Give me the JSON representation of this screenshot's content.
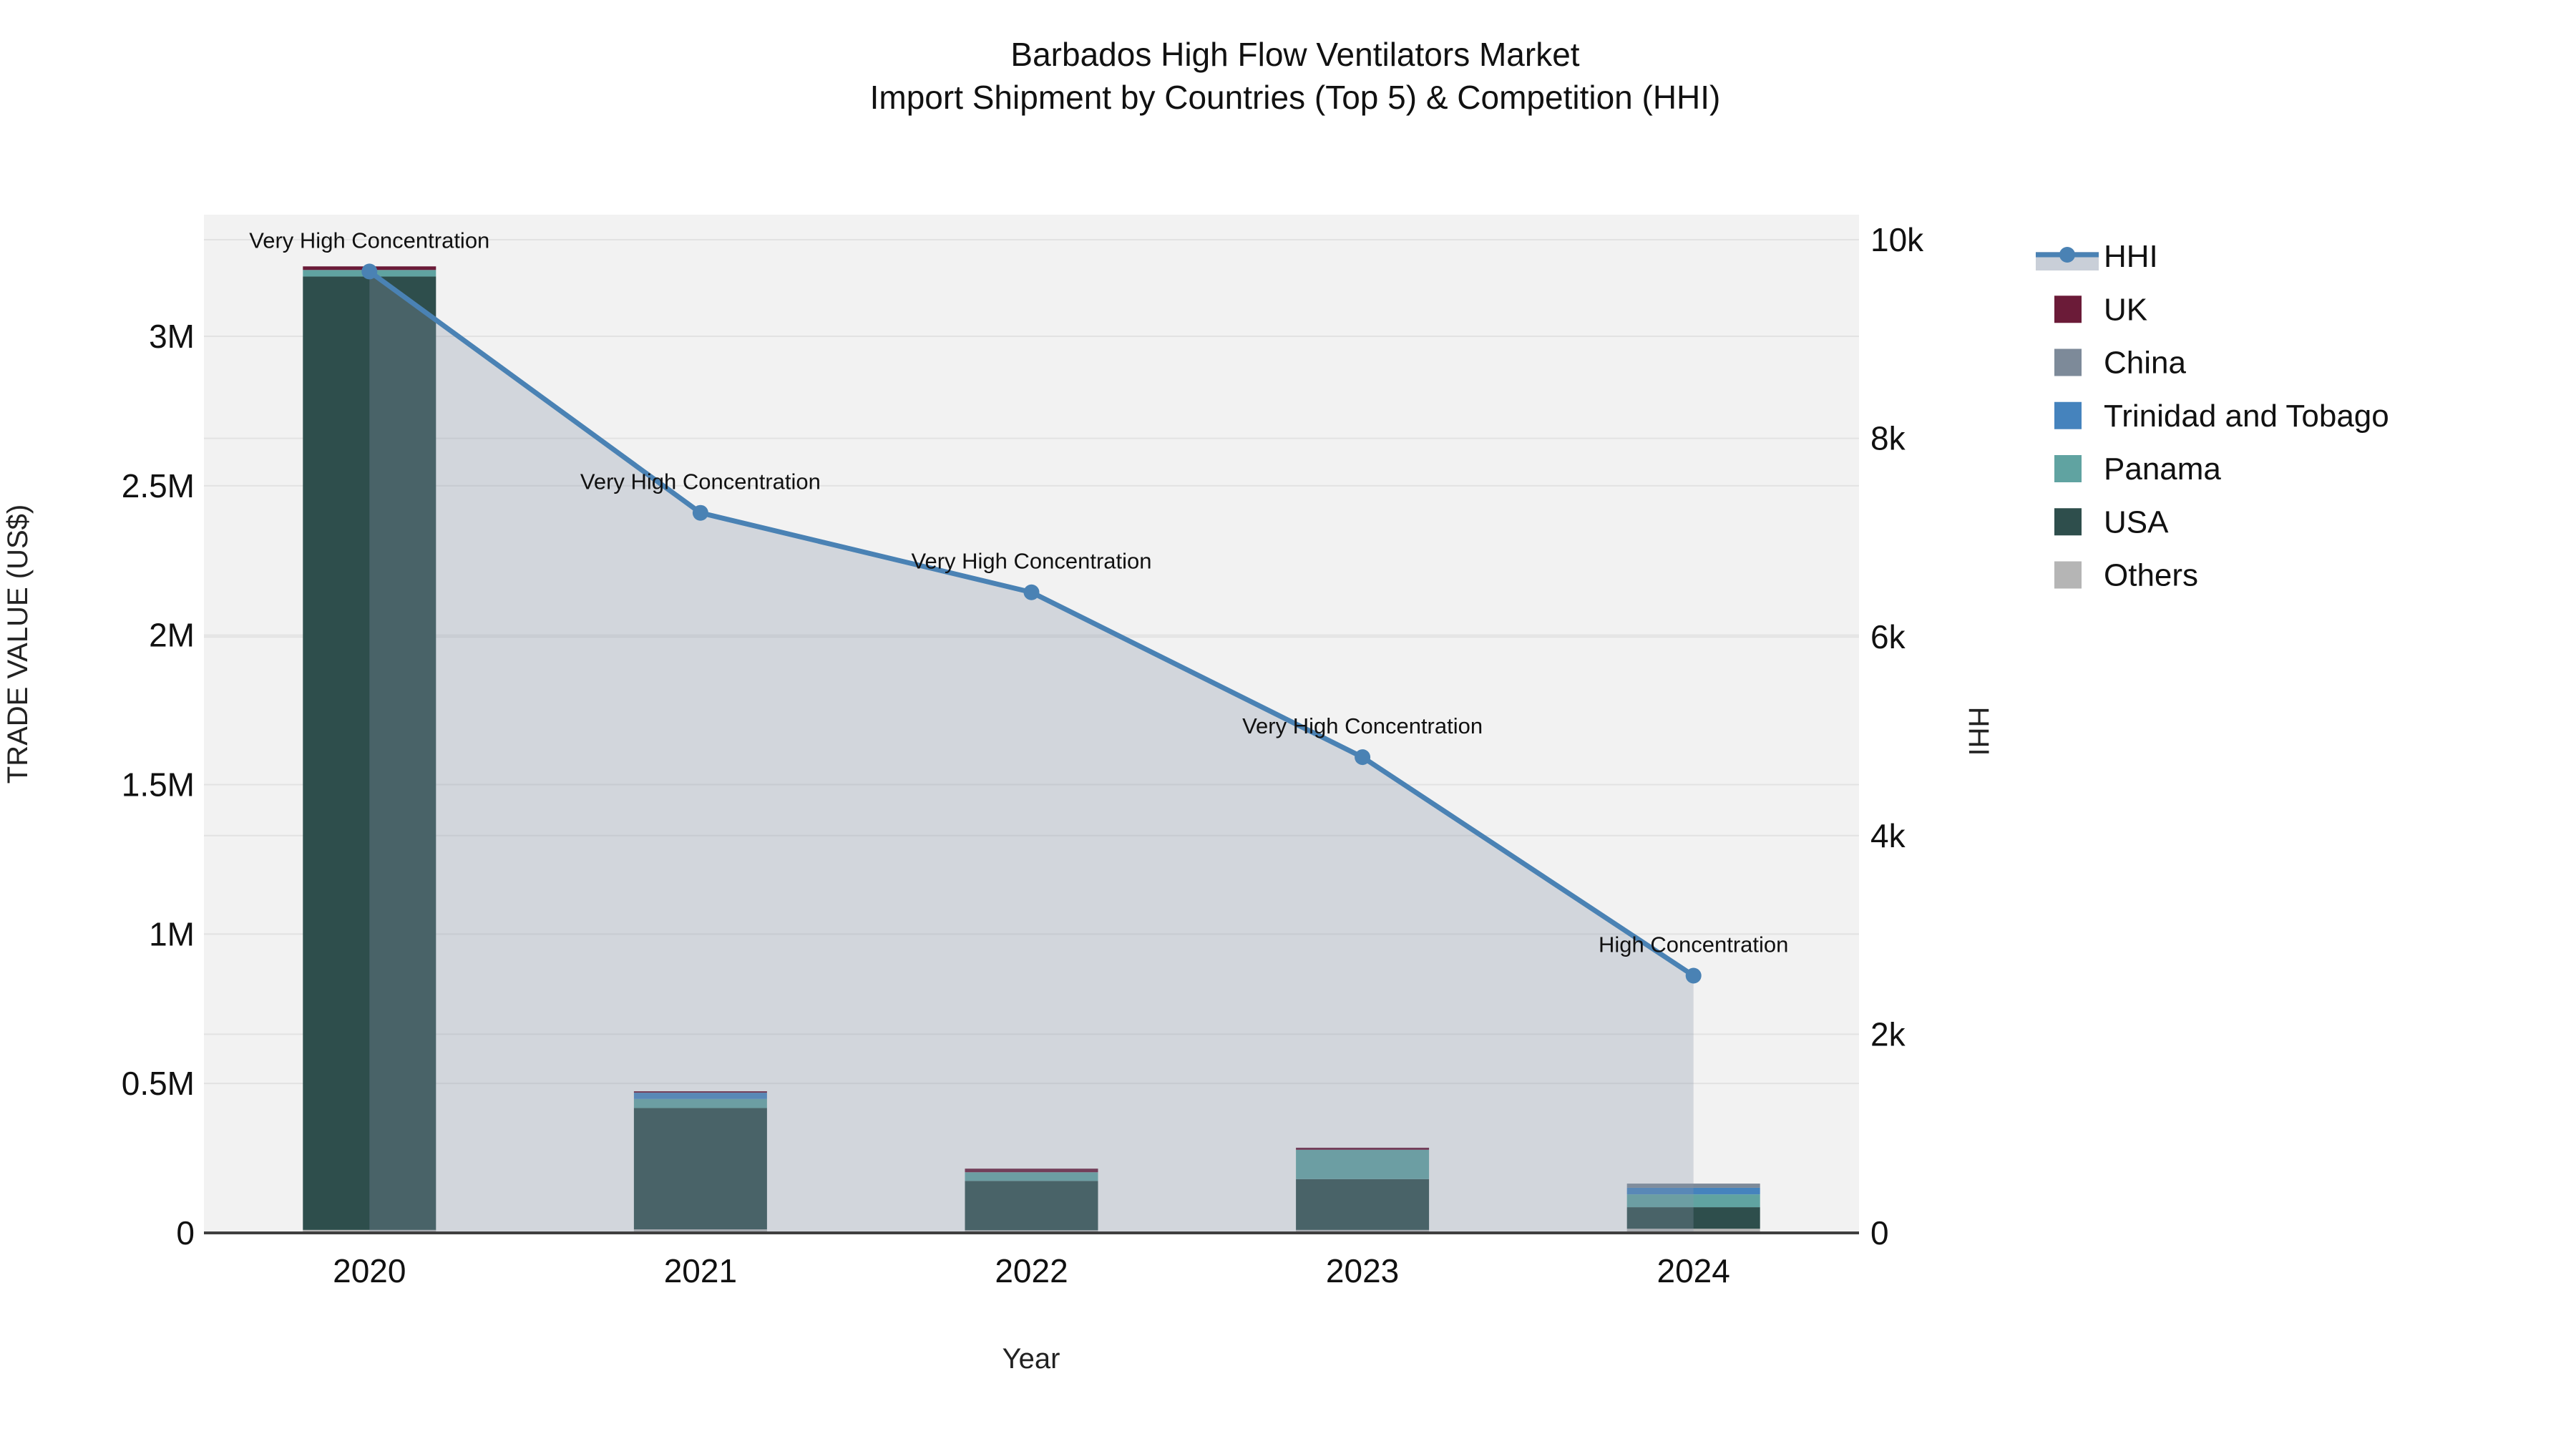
{
  "title": {
    "line1": "Barbados High Flow Ventilators Market",
    "line2": "Import Shipment by Countries (Top 5) & Competition (HHI)"
  },
  "legend": {
    "items": [
      {
        "label": "HHI",
        "type": "line",
        "color": "#4a82b4",
        "band_color": "#c9cfd8"
      },
      {
        "label": "UK",
        "type": "swatch",
        "color": "#6b1b38"
      },
      {
        "label": "China",
        "type": "swatch",
        "color": "#7d8a99"
      },
      {
        "label": "Trinidad and Tobago",
        "type": "swatch",
        "color": "#4583bd"
      },
      {
        "label": "Panama",
        "type": "swatch",
        "color": "#60a3a1"
      },
      {
        "label": "USA",
        "type": "swatch",
        "color": "#2e4e4c"
      },
      {
        "label": "Others",
        "type": "swatch",
        "color": "#b5b5b5"
      }
    ]
  },
  "colors": {
    "plot_background": "#f2f2f2",
    "gridline": "#e2e2e2",
    "axis_line": "#3f3f3f",
    "hhi_line": "#4a82b4",
    "hhi_area_fill": "#8794a8"
  },
  "chart_data": {
    "type": "combo: stacked bar (left axis) + line with area (right axis)",
    "x_categories": [
      "2020",
      "2021",
      "2022",
      "2023",
      "2024"
    ],
    "x_axis_title": "Year",
    "left_axis": {
      "title": "TRADE VALUE (US$)",
      "range": [
        0,
        3405000
      ],
      "ticks": [
        {
          "v": 0,
          "label": "0"
        },
        {
          "v": 500000,
          "label": "0.5M"
        },
        {
          "v": 1000000,
          "label": "1M"
        },
        {
          "v": 1500000,
          "label": "1.5M"
        },
        {
          "v": 2000000,
          "label": "2M"
        },
        {
          "v": 2500000,
          "label": "2.5M"
        },
        {
          "v": 3000000,
          "label": "3M"
        }
      ]
    },
    "right_axis": {
      "title": "HHI",
      "range": [
        0,
        10000
      ],
      "ticks": [
        {
          "v": 0,
          "label": "0"
        },
        {
          "v": 2000,
          "label": "2k"
        },
        {
          "v": 4000,
          "label": "4k"
        },
        {
          "v": 6000,
          "label": "6k"
        },
        {
          "v": 8000,
          "label": "8k"
        },
        {
          "v": 10000,
          "label": "10k"
        }
      ]
    },
    "bar_series": [
      {
        "name": "UK",
        "color": "#6b1b38",
        "values": [
          12000,
          5000,
          12000,
          7000,
          0
        ]
      },
      {
        "name": "China",
        "color": "#7d8a99",
        "values": [
          0,
          0,
          0,
          0,
          14000
        ]
      },
      {
        "name": "Trinidad and Tobago",
        "color": "#4583bd",
        "values": [
          0,
          21000,
          0,
          0,
          22000
        ]
      },
      {
        "name": "Panama",
        "color": "#60a3a1",
        "values": [
          22000,
          30000,
          29000,
          98000,
          43000
        ]
      },
      {
        "name": "USA",
        "color": "#2e4e4c",
        "values": [
          3190000,
          406000,
          165000,
          170000,
          72000
        ]
      },
      {
        "name": "Others",
        "color": "#b5b5b5",
        "values": [
          10000,
          12000,
          9000,
          10000,
          14000
        ]
      }
    ],
    "stack_order_bottom_to_top": [
      "Others",
      "USA",
      "Panama",
      "Trinidad and Tobago",
      "China",
      "UK"
    ],
    "line_series": {
      "name": "HHI",
      "color": "#4a82b4",
      "fill_color": "#8794a8",
      "fill_opacity": 0.3,
      "values": [
        9680,
        7250,
        6450,
        4790,
        2590
      ]
    },
    "annotations": [
      {
        "x_index": 0,
        "text": "Very High Concentration"
      },
      {
        "x_index": 1,
        "text": "Very High Concentration"
      },
      {
        "x_index": 2,
        "text": "Very High Concentration"
      },
      {
        "x_index": 3,
        "text": "Very High Concentration"
      },
      {
        "x_index": 4,
        "text": "High Concentration"
      }
    ]
  }
}
